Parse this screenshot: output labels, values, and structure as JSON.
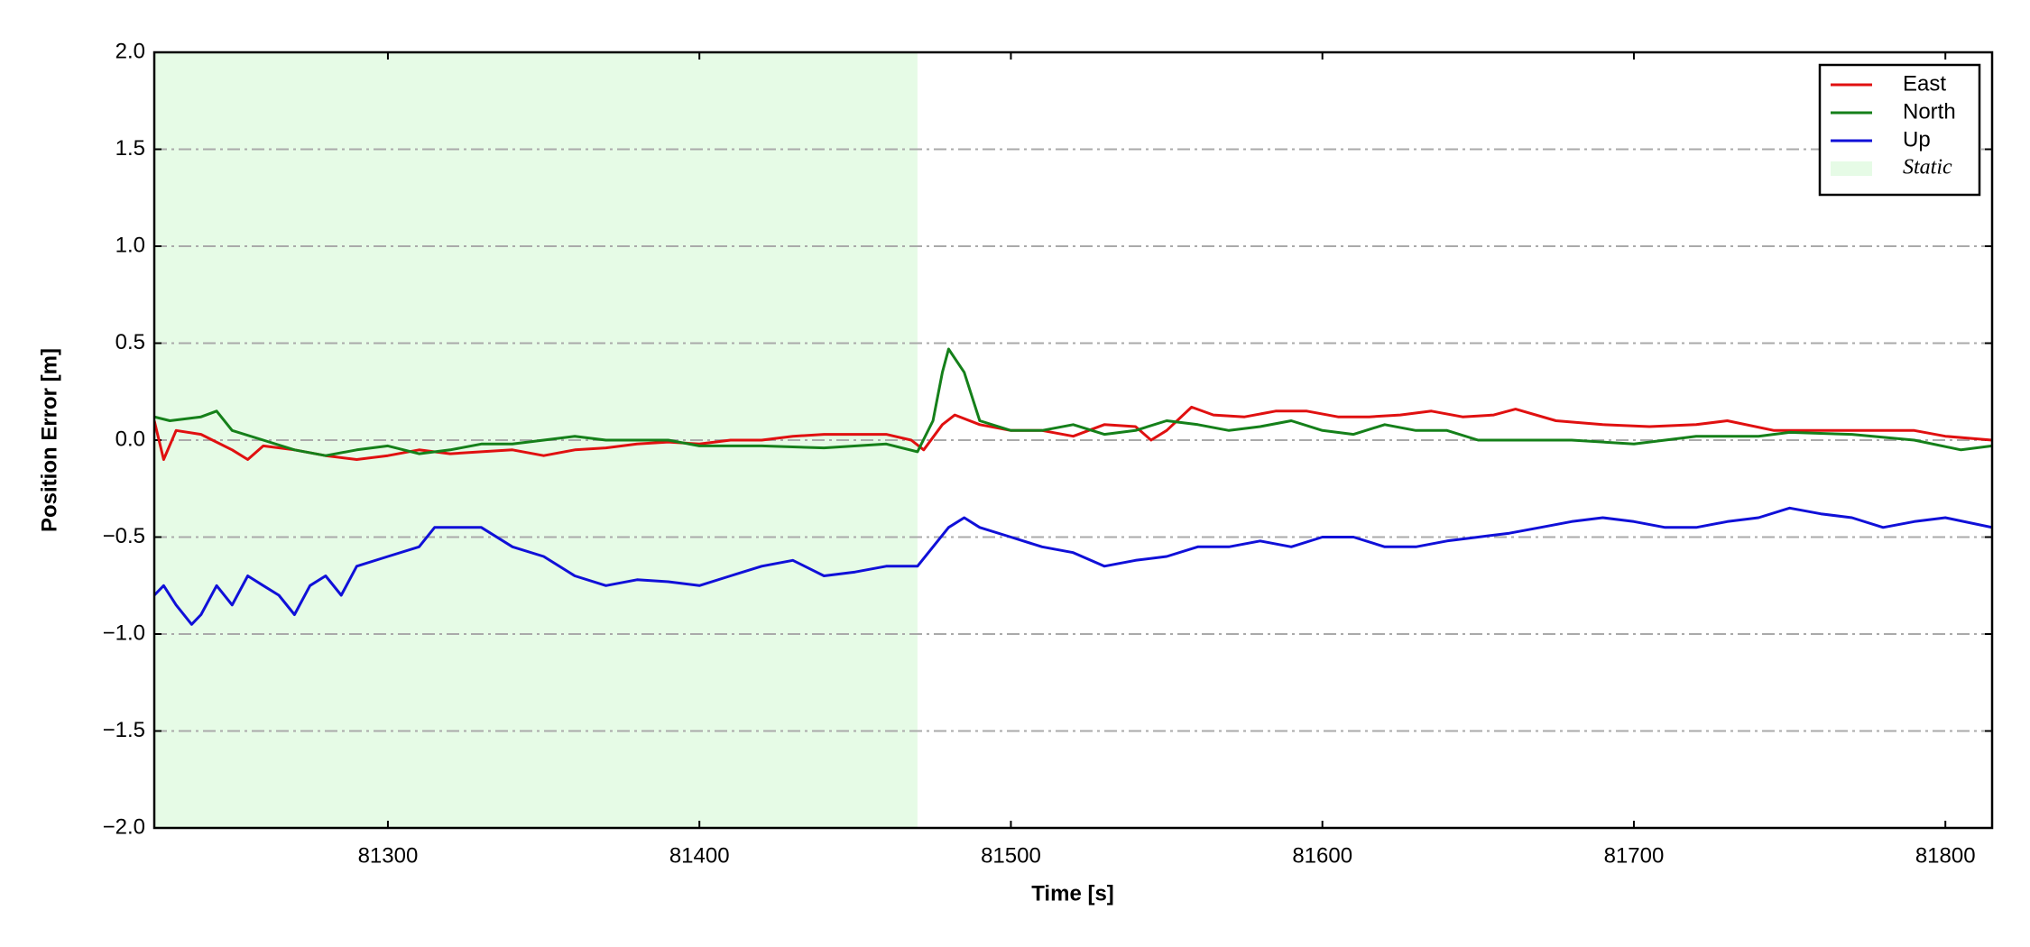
{
  "chart_data": {
    "type": "line",
    "xlabel": "Time [s]",
    "ylabel": "Position Error [m]",
    "xlim": [
      81225,
      81815
    ],
    "ylim": [
      -2.0,
      2.0
    ],
    "xticks": [
      81300,
      81400,
      81500,
      81600,
      81700,
      81800
    ],
    "yticks": [
      {
        "value": -2.0,
        "label": "−2.0"
      },
      {
        "value": -1.5,
        "label": "−1.5"
      },
      {
        "value": -1.0,
        "label": "−1.0"
      },
      {
        "value": -0.5,
        "label": "−0.5"
      },
      {
        "value": 0,
        "label": "0.0"
      },
      {
        "value": 0.5,
        "label": "0.5"
      },
      {
        "value": 1.0,
        "label": "1.0"
      },
      {
        "value": 1.5,
        "label": "1.5"
      },
      {
        "value": 2.0,
        "label": "2.0"
      }
    ],
    "grid": true,
    "legend": "upper right",
    "static_region": {
      "name": "Static",
      "color": "#e6fbe6",
      "xlim": [
        81225,
        81470
      ]
    },
    "series": [
      {
        "name": "East",
        "color": "#e01010",
        "x": [
          81225,
          81228,
          81232,
          81240,
          81250,
          81255,
          81260,
          81270,
          81280,
          81290,
          81300,
          81310,
          81320,
          81330,
          81340,
          81350,
          81360,
          81370,
          81380,
          81390,
          81400,
          81410,
          81420,
          81430,
          81440,
          81450,
          81460,
          81468,
          81472,
          81478,
          81482,
          81490,
          81500,
          81510,
          81520,
          81530,
          81540,
          81545,
          81550,
          81558,
          81565,
          81575,
          81585,
          81595,
          81605,
          81615,
          81625,
          81635,
          81645,
          81655,
          81662,
          81675,
          81690,
          81705,
          81720,
          81730,
          81745,
          81760,
          81775,
          81790,
          81800,
          81815
        ],
        "values": [
          0.1,
          -0.1,
          0.05,
          0.03,
          -0.05,
          -0.1,
          -0.03,
          -0.05,
          -0.08,
          -0.1,
          -0.08,
          -0.05,
          -0.07,
          -0.06,
          -0.05,
          -0.08,
          -0.05,
          -0.04,
          -0.02,
          -0.01,
          -0.02,
          0.0,
          0.0,
          0.02,
          0.03,
          0.03,
          0.03,
          0.0,
          -0.05,
          0.08,
          0.13,
          0.08,
          0.05,
          0.05,
          0.02,
          0.08,
          0.07,
          0.0,
          0.05,
          0.17,
          0.13,
          0.12,
          0.15,
          0.15,
          0.12,
          0.12,
          0.13,
          0.15,
          0.12,
          0.13,
          0.16,
          0.1,
          0.08,
          0.07,
          0.08,
          0.1,
          0.05,
          0.05,
          0.05,
          0.05,
          0.02,
          0.0
        ]
      },
      {
        "name": "North",
        "color": "#15801a",
        "x": [
          81225,
          81230,
          81240,
          81245,
          81250,
          81260,
          81270,
          81280,
          81290,
          81300,
          81310,
          81320,
          81330,
          81340,
          81350,
          81360,
          81370,
          81380,
          81390,
          81400,
          81420,
          81440,
          81460,
          81470,
          81475,
          81478,
          81480,
          81485,
          81490,
          81500,
          81510,
          81520,
          81530,
          81540,
          81550,
          81560,
          81570,
          81580,
          81590,
          81600,
          81610,
          81620,
          81630,
          81640,
          81650,
          81660,
          81680,
          81700,
          81720,
          81740,
          81750,
          81770,
          81790,
          81805,
          81815
        ],
        "values": [
          0.12,
          0.1,
          0.12,
          0.15,
          0.05,
          0.0,
          -0.05,
          -0.08,
          -0.05,
          -0.03,
          -0.07,
          -0.05,
          -0.02,
          -0.02,
          0.0,
          0.02,
          0.0,
          0.0,
          0.0,
          -0.03,
          -0.03,
          -0.04,
          -0.02,
          -0.06,
          0.1,
          0.35,
          0.47,
          0.35,
          0.1,
          0.05,
          0.05,
          0.08,
          0.03,
          0.05,
          0.1,
          0.08,
          0.05,
          0.07,
          0.1,
          0.05,
          0.03,
          0.08,
          0.05,
          0.05,
          0.0,
          0.0,
          0.0,
          -0.02,
          0.02,
          0.02,
          0.04,
          0.03,
          0.0,
          -0.05,
          -0.03
        ]
      },
      {
        "name": "Up",
        "color": "#1010d8",
        "x": [
          81225,
          81228,
          81232,
          81237,
          81240,
          81245,
          81250,
          81255,
          81260,
          81265,
          81270,
          81275,
          81280,
          81285,
          81290,
          81300,
          81310,
          81315,
          81320,
          81330,
          81340,
          81350,
          81360,
          81370,
          81380,
          81390,
          81400,
          81410,
          81420,
          81430,
          81440,
          81450,
          81460,
          81470,
          81480,
          81485,
          81490,
          81500,
          81510,
          81520,
          81530,
          81540,
          81550,
          81560,
          81570,
          81580,
          81590,
          81600,
          81610,
          81620,
          81630,
          81640,
          81650,
          81660,
          81670,
          81680,
          81690,
          81700,
          81710,
          81720,
          81730,
          81740,
          81750,
          81760,
          81770,
          81780,
          81790,
          81800,
          81815
        ],
        "values": [
          -0.8,
          -0.75,
          -0.85,
          -0.95,
          -0.9,
          -0.75,
          -0.85,
          -0.7,
          -0.75,
          -0.8,
          -0.9,
          -0.75,
          -0.7,
          -0.8,
          -0.65,
          -0.6,
          -0.55,
          -0.45,
          -0.45,
          -0.45,
          -0.55,
          -0.6,
          -0.7,
          -0.75,
          -0.72,
          -0.73,
          -0.75,
          -0.7,
          -0.65,
          -0.62,
          -0.7,
          -0.68,
          -0.65,
          -0.65,
          -0.45,
          -0.4,
          -0.45,
          -0.5,
          -0.55,
          -0.58,
          -0.65,
          -0.62,
          -0.6,
          -0.55,
          -0.55,
          -0.52,
          -0.55,
          -0.5,
          -0.5,
          -0.55,
          -0.55,
          -0.52,
          -0.5,
          -0.48,
          -0.45,
          -0.42,
          -0.4,
          -0.42,
          -0.45,
          -0.45,
          -0.42,
          -0.4,
          -0.35,
          -0.38,
          -0.4,
          -0.45,
          -0.42,
          -0.4,
          -0.45
        ]
      }
    ]
  }
}
